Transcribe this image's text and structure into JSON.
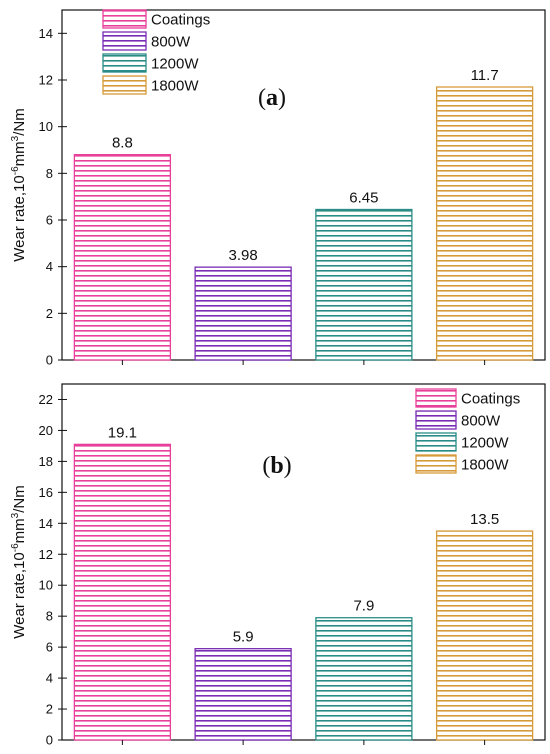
{
  "chart_data": [
    {
      "type": "bar",
      "panel_label": "a",
      "categories": [
        "Coatings",
        "800W",
        "1200W",
        "1800W"
      ],
      "values": [
        8.8,
        3.98,
        6.45,
        11.7
      ],
      "value_labels": [
        "8.8",
        "3.98",
        "6.45",
        "11.7"
      ],
      "ylabel": "Wear rate,10",
      "ylabel_sup": "-6",
      "ylabel_mid": "mm",
      "ylabel_sup2": "3",
      "ylabel_end": "/Nm",
      "ylim": [
        0,
        15
      ],
      "yticks": [
        0,
        2,
        4,
        6,
        8,
        10,
        12,
        14
      ],
      "legend": [
        "Coatings",
        "800W",
        "1200W",
        "1800W"
      ],
      "legend_position": "top-left",
      "colors": [
        "#e8409a",
        "#7a2cb4",
        "#2a8c86",
        "#d59a3a"
      ],
      "fill_pattern": "horizontal-stripes"
    },
    {
      "type": "bar",
      "panel_label": "b",
      "categories": [
        "Coatings",
        "800W",
        "1200W",
        "1800W"
      ],
      "values": [
        19.1,
        5.9,
        7.9,
        13.5
      ],
      "value_labels": [
        "19.1",
        "5.9",
        "7.9",
        "13.5"
      ],
      "ylabel": "Wear rate,10",
      "ylabel_sup": "-6",
      "ylabel_mid": "mm",
      "ylabel_sup2": "3",
      "ylabel_end": "/Nm",
      "ylim": [
        0,
        23
      ],
      "yticks": [
        0,
        2,
        4,
        6,
        8,
        10,
        12,
        14,
        16,
        18,
        20,
        22
      ],
      "legend": [
        "Coatings",
        "800W",
        "1200W",
        "1800W"
      ],
      "legend_position": "top-right",
      "colors": [
        "#e8409a",
        "#7a2cb4",
        "#2a8c86",
        "#d59a3a"
      ],
      "fill_pattern": "horizontal-stripes"
    }
  ]
}
